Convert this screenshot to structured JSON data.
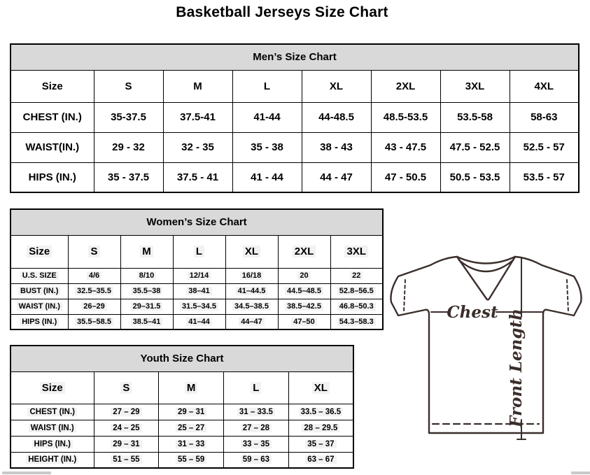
{
  "page_title": "Basketball Jerseys Size Chart",
  "chart_data": [
    {
      "type": "table",
      "title": "Men’s Size Chart",
      "columns": [
        "Size",
        "S",
        "M",
        "L",
        "XL",
        "2XL",
        "3XL",
        "4XL"
      ],
      "rows": [
        {
          "label": "CHEST (IN.)",
          "values": [
            "35-37.5",
            "37.5-41",
            "41-44",
            "44-48.5",
            "48.5-53.5",
            "53.5-58",
            "58-63"
          ]
        },
        {
          "label": "WAIST(IN.)",
          "values": [
            "29 - 32",
            "32 - 35",
            "35 - 38",
            "38 - 43",
            "43 - 47.5",
            "47.5 - 52.5",
            "52.5 - 57"
          ]
        },
        {
          "label": "HIPS (IN.)",
          "values": [
            "35 - 37.5",
            "37.5 - 41",
            "41 - 44",
            "44 - 47",
            "47 - 50.5",
            "50.5 - 53.5",
            "53.5 - 57"
          ]
        }
      ]
    },
    {
      "type": "table",
      "title": "Women’s Size Chart",
      "columns": [
        "Size",
        "S",
        "M",
        "L",
        "XL",
        "2XL",
        "3XL"
      ],
      "rows": [
        {
          "label": "U.S. SIZE",
          "values": [
            "4/6",
            "8/10",
            "12/14",
            "16/18",
            "20",
            "22"
          ]
        },
        {
          "label": "BUST (IN.)",
          "values": [
            "32.5–35.5",
            "35.5–38",
            "38–41",
            "41–44.5",
            "44.5–48.5",
            "52.8–56.5"
          ]
        },
        {
          "label": "WAIST (IN.)",
          "values": [
            "26–29",
            "29–31.5",
            "31.5–34.5",
            "34.5–38.5",
            "38.5–42.5",
            "46.8–50.3"
          ]
        },
        {
          "label": "HIPS (IN.)",
          "values": [
            "35.5–58.5",
            "38.5–41",
            "41–44",
            "44–47",
            "47–50",
            "54.3–58.3"
          ]
        }
      ]
    },
    {
      "type": "table",
      "title": "Youth Size Chart",
      "columns": [
        "Size",
        "S",
        "M",
        "L",
        "XL"
      ],
      "rows": [
        {
          "label": "CHEST (IN.)",
          "values": [
            "27 – 29",
            "29 – 31",
            "31 – 33.5",
            "33.5 – 36.5"
          ]
        },
        {
          "label": "WAIST (IN.)",
          "values": [
            "24 – 25",
            "25 – 27",
            "27 – 28",
            "28 – 29.5"
          ]
        },
        {
          "label": "HIPS (IN.)",
          "values": [
            "29 – 31",
            "31 – 33",
            "33 – 35",
            "35 – 37"
          ]
        },
        {
          "label": "HEIGHT (IN.)",
          "values": [
            "51 – 55",
            "55 – 59",
            "59 – 63",
            "63 – 67"
          ]
        }
      ]
    }
  ],
  "diagram": {
    "chest_label": "Chest",
    "front_length_label": "Front Length"
  },
  "colors": {
    "table_header_bg": "#d9d9d9",
    "table_border": "#000000",
    "jersey_outline": "#3a2e2b"
  }
}
